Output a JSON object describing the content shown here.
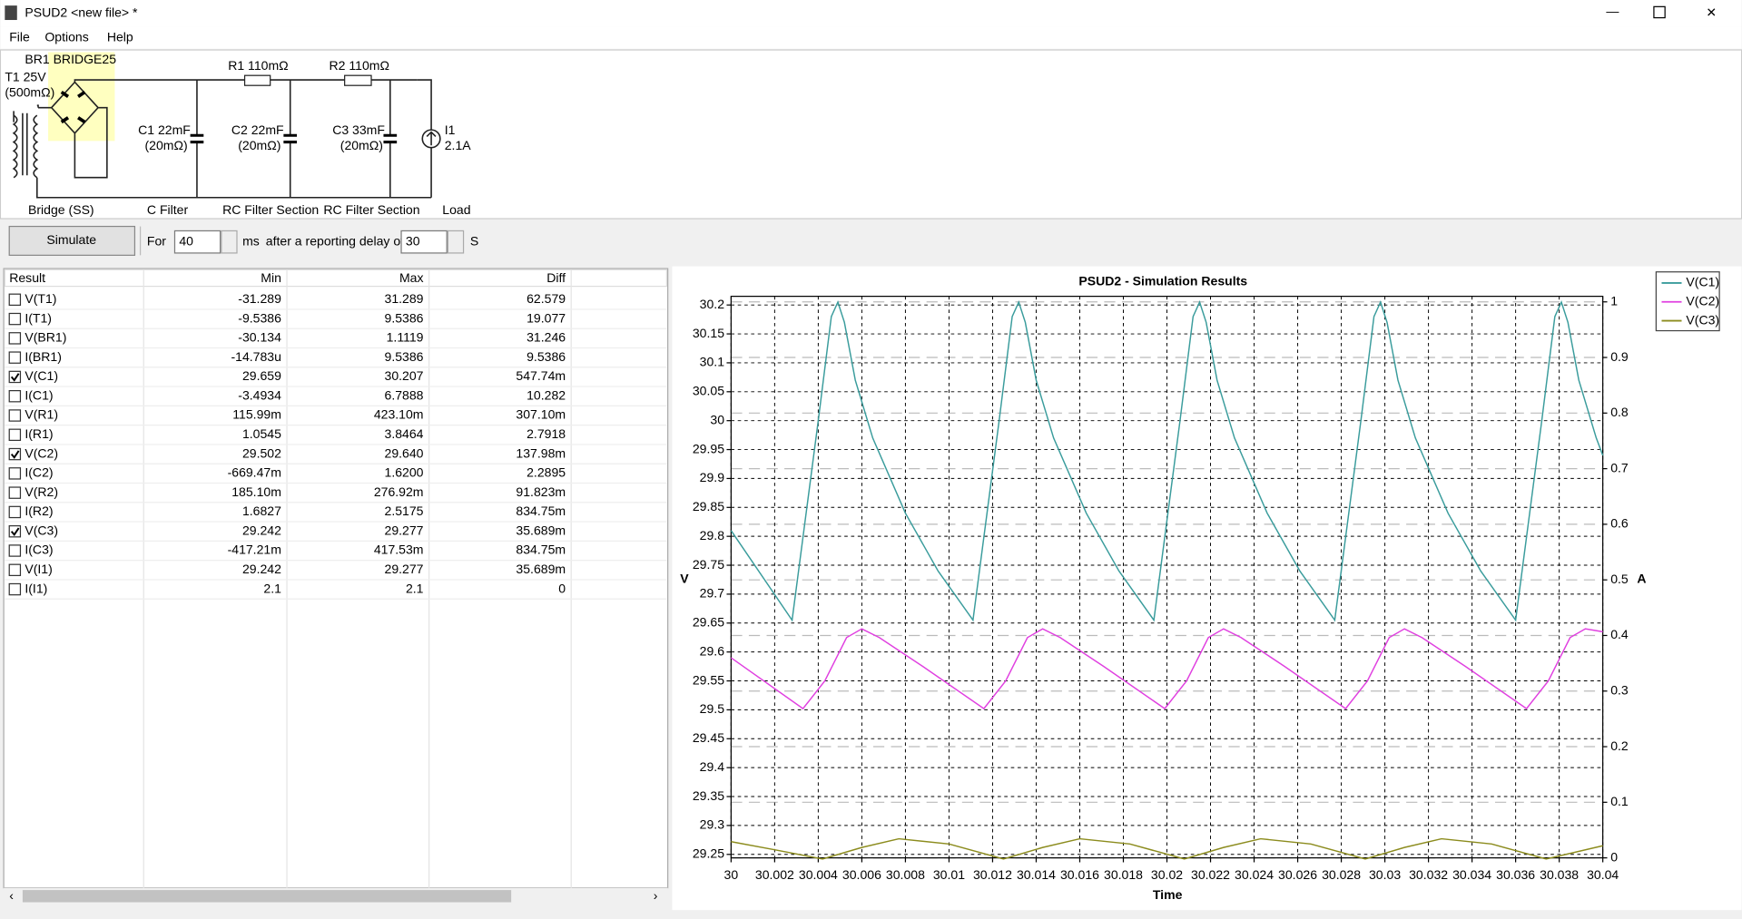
{
  "window": {
    "title": "PSUD2  <new file> *"
  },
  "menu": [
    "File",
    "Options",
    "Help"
  ],
  "schematic": {
    "bridge": "BR1 BRIDGE25",
    "transformer": [
      "T1 25V",
      "(500mΩ)"
    ],
    "r1": "R1 110mΩ",
    "r2": "R2 110mΩ",
    "c1": [
      "C1 22mF",
      "(20mΩ)"
    ],
    "c2": [
      "C2 22mF",
      "(20mΩ)"
    ],
    "c3": [
      "C3 33mF",
      "(20mΩ)"
    ],
    "load": [
      "I1",
      "2.1A"
    ],
    "sections": [
      "Bridge (SS)",
      "C Filter",
      "RC Filter Section",
      "RC Filter Section",
      "Load"
    ]
  },
  "controls": {
    "button": "Simulate",
    "for": "For",
    "duration": "40",
    "ms": "ms",
    "delay_label": "after a reporting delay of",
    "delay": "30",
    "s": "S"
  },
  "table": {
    "headers": [
      "Result",
      "Min",
      "Max",
      "Diff"
    ],
    "rows": [
      {
        "name": "V(T1)",
        "min": "-31.289",
        "max": "31.289",
        "diff": "62.579",
        "checked": false
      },
      {
        "name": "I(T1)",
        "min": "-9.5386",
        "max": "9.5386",
        "diff": "19.077",
        "checked": false
      },
      {
        "name": "V(BR1)",
        "min": "-30.134",
        "max": "1.1119",
        "diff": "31.246",
        "checked": false
      },
      {
        "name": "I(BR1)",
        "min": "-14.783u",
        "max": "9.5386",
        "diff": "9.5386",
        "checked": false
      },
      {
        "name": "V(C1)",
        "min": "29.659",
        "max": "30.207",
        "diff": "547.74m",
        "checked": true
      },
      {
        "name": "I(C1)",
        "min": "-3.4934",
        "max": "6.7888",
        "diff": "10.282",
        "checked": false
      },
      {
        "name": "V(R1)",
        "min": "115.99m",
        "max": "423.10m",
        "diff": "307.10m",
        "checked": false
      },
      {
        "name": "I(R1)",
        "min": "1.0545",
        "max": "3.8464",
        "diff": "2.7918",
        "checked": false
      },
      {
        "name": "V(C2)",
        "min": "29.502",
        "max": "29.640",
        "diff": "137.98m",
        "checked": true
      },
      {
        "name": "I(C2)",
        "min": "-669.47m",
        "max": "1.6200",
        "diff": "2.2895",
        "checked": false
      },
      {
        "name": "V(R2)",
        "min": "185.10m",
        "max": "276.92m",
        "diff": "91.823m",
        "checked": false
      },
      {
        "name": "I(R2)",
        "min": "1.6827",
        "max": "2.5175",
        "diff": "834.75m",
        "checked": false
      },
      {
        "name": "V(C3)",
        "min": "29.242",
        "max": "29.277",
        "diff": "35.689m",
        "checked": true
      },
      {
        "name": "I(C3)",
        "min": "-417.21m",
        "max": "417.53m",
        "diff": "834.75m",
        "checked": false
      },
      {
        "name": "V(I1)",
        "min": "29.242",
        "max": "29.277",
        "diff": "35.689m",
        "checked": false
      },
      {
        "name": "I(I1)",
        "min": "2.1",
        "max": "2.1",
        "diff": "0",
        "checked": false
      }
    ]
  },
  "chart_data": {
    "type": "line",
    "title": "PSUD2 - Simulation Results",
    "xlabel": "Time",
    "ylabel": "V",
    "y2label": "A",
    "xlim": [
      30,
      30.04
    ],
    "xticks": [
      30,
      30.002,
      30.004,
      30.006,
      30.008,
      30.01,
      30.012,
      30.014,
      30.016,
      30.018,
      30.02,
      30.022,
      30.024,
      30.026,
      30.028,
      30.03,
      30.032,
      30.034,
      30.036,
      30.038,
      30.04
    ],
    "ylim": [
      29.244,
      30.215
    ],
    "yticks": [
      29.25,
      29.3,
      29.35,
      29.4,
      29.45,
      29.5,
      29.55,
      29.6,
      29.65,
      29.7,
      29.75,
      29.8,
      29.85,
      29.9,
      29.95,
      30,
      30.05,
      30.1,
      30.15,
      30.2
    ],
    "y2lim": [
      0,
      1.01
    ],
    "y2ticks": [
      0,
      0.1,
      0.2,
      0.3,
      0.4,
      0.5,
      0.6,
      0.7,
      0.8,
      0.9,
      1
    ],
    "grid": true,
    "legend": "outside-right",
    "series": [
      {
        "name": "V(C1)",
        "color": "#3a9c9c",
        "x": [
          30,
          30.0028,
          30.004,
          30.0046,
          30.0049,
          30.0052,
          30.0057,
          30.0065,
          30.008,
          30.0095,
          30.0111,
          30.0123,
          30.0129,
          30.0132,
          30.0135,
          30.014,
          30.0148,
          30.0163,
          30.0178,
          30.0194,
          30.0206,
          30.0212,
          30.0215,
          30.0218,
          30.0223,
          30.0231,
          30.0246,
          30.0261,
          30.0277,
          30.0289,
          30.0295,
          30.0298,
          30.0301,
          30.0306,
          30.0314,
          30.0329,
          30.0344,
          30.036,
          30.0372,
          30.0378,
          30.0381,
          30.0384,
          30.0389,
          30.0397,
          30.04
        ],
        "values": [
          29.81,
          29.655,
          30.0,
          30.18,
          30.205,
          30.17,
          30.07,
          29.97,
          29.84,
          29.74,
          29.655,
          30.0,
          30.18,
          30.205,
          30.17,
          30.07,
          29.97,
          29.84,
          29.74,
          29.655,
          30.0,
          30.18,
          30.205,
          30.17,
          30.07,
          29.97,
          29.84,
          29.74,
          29.655,
          30.0,
          30.18,
          30.205,
          30.17,
          30.07,
          29.97,
          29.84,
          29.74,
          29.655,
          30.0,
          30.18,
          30.205,
          30.17,
          30.07,
          29.97,
          29.94
        ]
      },
      {
        "name": "V(C2)",
        "color": "#e040e0",
        "x": [
          30,
          30.0033,
          30.0043,
          30.0053,
          30.006,
          30.0068,
          30.0088,
          30.0116,
          30.0126,
          30.0136,
          30.0143,
          30.0151,
          30.0171,
          30.0199,
          30.0209,
          30.0219,
          30.0226,
          30.0234,
          30.0254,
          30.0282,
          30.0292,
          30.0302,
          30.0309,
          30.0317,
          30.0337,
          30.0365,
          30.0375,
          30.0385,
          30.0392,
          30.04
        ],
        "values": [
          29.59,
          29.502,
          29.55,
          29.625,
          29.64,
          29.625,
          29.575,
          29.502,
          29.55,
          29.625,
          29.64,
          29.625,
          29.575,
          29.502,
          29.55,
          29.625,
          29.64,
          29.625,
          29.575,
          29.502,
          29.55,
          29.625,
          29.64,
          29.625,
          29.575,
          29.502,
          29.55,
          29.625,
          29.64,
          29.635
        ]
      },
      {
        "name": "V(C3)",
        "color": "#8c8c1e",
        "x": [
          30,
          30.002,
          30.0042,
          30.006,
          30.0077,
          30.01,
          30.0125,
          30.0143,
          30.016,
          30.0183,
          30.0208,
          30.0226,
          30.0243,
          30.0266,
          30.0291,
          30.0309,
          30.0326,
          30.0349,
          30.0374,
          30.04
        ],
        "values": [
          29.272,
          29.258,
          29.242,
          29.262,
          29.277,
          29.268,
          29.242,
          29.262,
          29.277,
          29.268,
          29.242,
          29.262,
          29.277,
          29.268,
          29.242,
          29.262,
          29.277,
          29.268,
          29.242,
          29.265
        ]
      }
    ]
  }
}
